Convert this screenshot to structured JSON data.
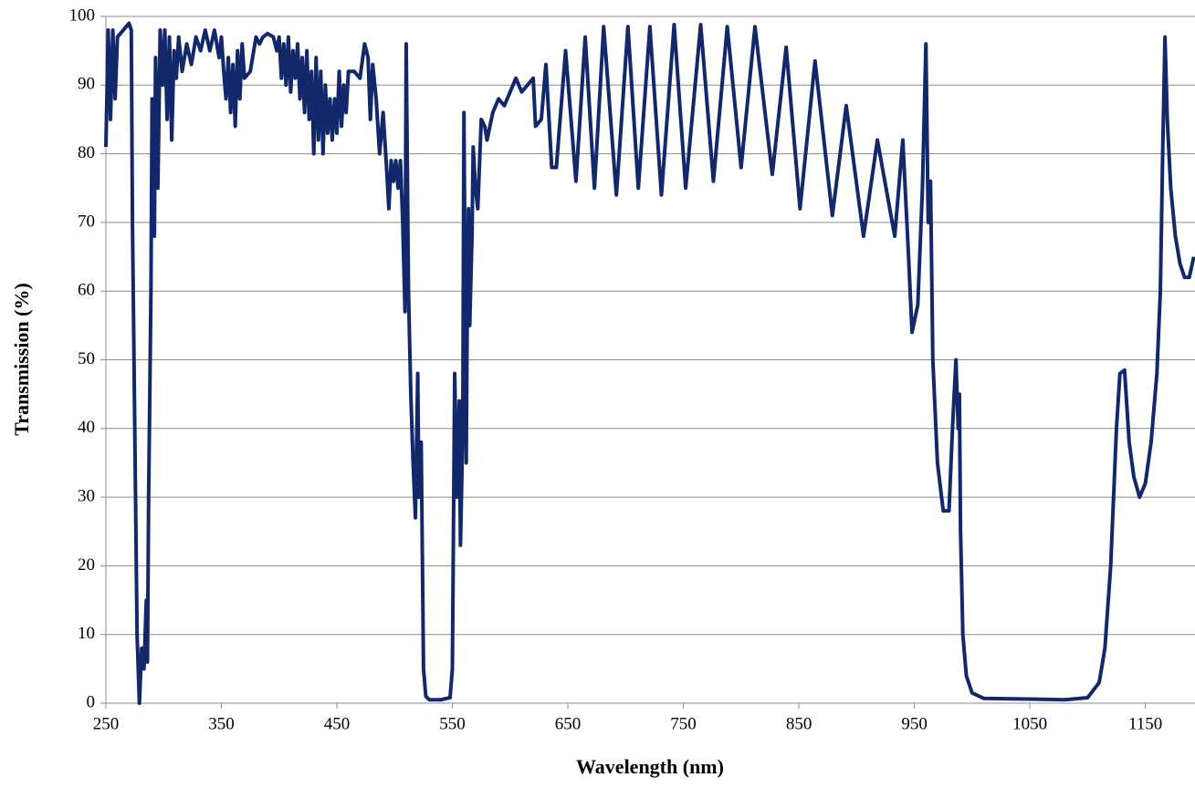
{
  "chart_data": {
    "type": "line",
    "xlabel": "Wavelength (nm)",
    "ylabel": "Transmission (%)",
    "xlim": [
      250,
      1193
    ],
    "ylim": [
      0,
      100
    ],
    "xticks": [
      250,
      350,
      450,
      550,
      650,
      750,
      850,
      950,
      1050,
      1150
    ],
    "yticks": [
      0,
      10,
      20,
      30,
      40,
      50,
      60,
      70,
      80,
      90,
      100
    ],
    "grid": true,
    "series": [
      {
        "color": "#13286a",
        "x": [
          250,
          252,
          254,
          256,
          258,
          260,
          265,
          270,
          272,
          273,
          275,
          277,
          279,
          281,
          283,
          285,
          286,
          287,
          289,
          290,
          292,
          293,
          295,
          297,
          299,
          301,
          303,
          305,
          307,
          309,
          311,
          313,
          316,
          320,
          324,
          328,
          332,
          336,
          340,
          344,
          348,
          350,
          352,
          354,
          356,
          358,
          360,
          362,
          364,
          366,
          368,
          370,
          375,
          380,
          383,
          386,
          390,
          395,
          398,
          400,
          402,
          404,
          406,
          408,
          410,
          412,
          414,
          416,
          418,
          420,
          422,
          424,
          426,
          428,
          430,
          432,
          434,
          436,
          438,
          440,
          442,
          444,
          446,
          448,
          450,
          452,
          454,
          456,
          458,
          460,
          465,
          470,
          474,
          477,
          479,
          481,
          484,
          487,
          490,
          493,
          495,
          497,
          499,
          501,
          503,
          505,
          507,
          509,
          510,
          512,
          514,
          516,
          518,
          520,
          521,
          523,
          525,
          527,
          530,
          540,
          548,
          550,
          552,
          554,
          556,
          557,
          559,
          560,
          562,
          563,
          564,
          565,
          567,
          568,
          570,
          572,
          575,
          578,
          580,
          585,
          590,
          595,
          600,
          605,
          610,
          615,
          620,
          622,
          627,
          631,
          636,
          640,
          648,
          657,
          665,
          673,
          681,
          692,
          702,
          711,
          721,
          731,
          742,
          752,
          765,
          776,
          788,
          800,
          812,
          827,
          839,
          851,
          864,
          879,
          891,
          906,
          918,
          933,
          940,
          945,
          948,
          953,
          957,
          960,
          962,
          964,
          966,
          970,
          975,
          980,
          983,
          986,
          988,
          989,
          990,
          992,
          995,
          1000,
          1010,
          1050,
          1080,
          1100,
          1110,
          1115,
          1120,
          1125,
          1128,
          1132,
          1136,
          1140,
          1145,
          1150,
          1155,
          1160,
          1163,
          1165,
          1167,
          1169,
          1172,
          1176,
          1180,
          1184,
          1188,
          1192
        ],
        "values": [
          81,
          98,
          85,
          98,
          88,
          97,
          98,
          99,
          98,
          70,
          40,
          10,
          0,
          8,
          5,
          15,
          6,
          30,
          60,
          88,
          68,
          94,
          75,
          98,
          90,
          98,
          85,
          97,
          82,
          95,
          91,
          97,
          92,
          96,
          93,
          97,
          95,
          98,
          95,
          98,
          94,
          97,
          92,
          88,
          94,
          86,
          93,
          84,
          95,
          88,
          96,
          91,
          92,
          97,
          96,
          97,
          97.5,
          97,
          95,
          97,
          91,
          96,
          90,
          97,
          89,
          95,
          91,
          96,
          88,
          94,
          86,
          95,
          85,
          92,
          80,
          94,
          82,
          92,
          80,
          90,
          83,
          88,
          82,
          88,
          83,
          92,
          84,
          90,
          86,
          92,
          92,
          91,
          96,
          94,
          85,
          93,
          88,
          80,
          86,
          78,
          72,
          79,
          76,
          79,
          75,
          79,
          70,
          57,
          96,
          60,
          45,
          35,
          27,
          48,
          30,
          38,
          5,
          1,
          0.5,
          0.5,
          0.8,
          5,
          48,
          30,
          44,
          23,
          40,
          86,
          35,
          60,
          72,
          55,
          68,
          81,
          75,
          72,
          85,
          84,
          82,
          86,
          88,
          87,
          89,
          91,
          89,
          90,
          91,
          84,
          85,
          93,
          78,
          78,
          95,
          76,
          97,
          75,
          98.5,
          74,
          98.5,
          75,
          98.5,
          74,
          98.8,
          75,
          98.8,
          76,
          98.5,
          78,
          98.5,
          77,
          95.5,
          72,
          93.5,
          71,
          87,
          68,
          82,
          68,
          82,
          65,
          54,
          58,
          75,
          96,
          70,
          76,
          50,
          35,
          28,
          28,
          40,
          50,
          40,
          45,
          25,
          10,
          4,
          1.5,
          0.7,
          0.6,
          0.5,
          0.8,
          3,
          8,
          20,
          40,
          48,
          48.5,
          38,
          33,
          30,
          32,
          38,
          48,
          60,
          80,
          97,
          85,
          75,
          68,
          64,
          62,
          62,
          65
        ]
      }
    ]
  }
}
